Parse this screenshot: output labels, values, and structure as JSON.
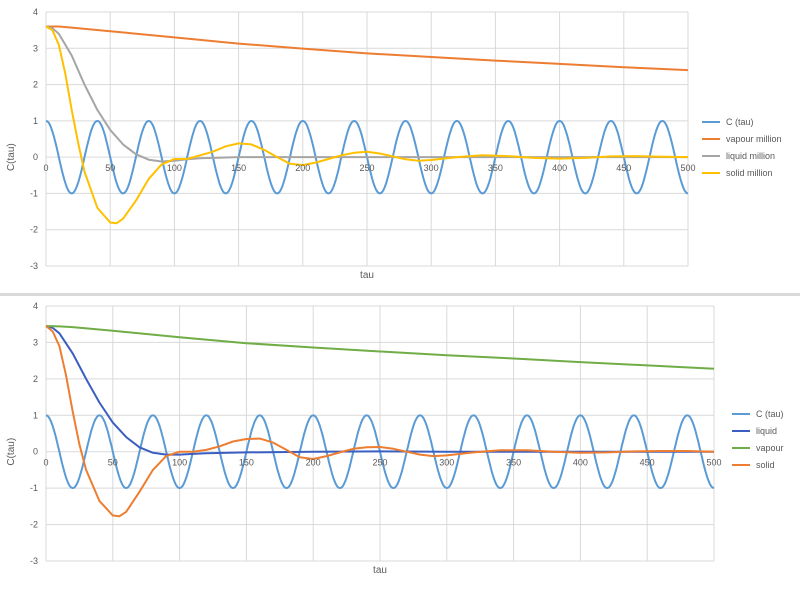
{
  "chart_data": [
    {
      "type": "line",
      "title": "",
      "xlabel": "tau",
      "ylabel": "C(tau)",
      "xlim": [
        0,
        500
      ],
      "ylim": [
        -3,
        4
      ],
      "x_ticks": [
        0,
        50,
        100,
        150,
        200,
        250,
        300,
        350,
        400,
        450,
        500
      ],
      "y_ticks": [
        -3,
        -2,
        -1,
        0,
        1,
        2,
        3,
        4
      ],
      "grid": true,
      "legend_position": "right",
      "series": [
        {
          "name": "C (tau)",
          "color": "#5b9bd5",
          "kind": "cosine",
          "amplitude": 1,
          "period": 40,
          "x": [
            0,
            20,
            40,
            60,
            80,
            100,
            120,
            140,
            160,
            180,
            200,
            220,
            240,
            260,
            280,
            300,
            320,
            340,
            360,
            380,
            400,
            420,
            440,
            460,
            480,
            500
          ],
          "values": [
            1,
            -1,
            1,
            -1,
            1,
            -1,
            1,
            -1,
            1,
            -1,
            1,
            -1,
            1,
            -1,
            1,
            -1,
            1,
            -1,
            1,
            -1,
            1,
            -1,
            1,
            -1,
            1,
            -1
          ]
        },
        {
          "name": "vapour million",
          "color": "#ed7d31",
          "x": [
            0,
            10,
            20,
            50,
            100,
            150,
            200,
            250,
            300,
            350,
            400,
            450,
            500
          ],
          "values": [
            3.6,
            3.6,
            3.57,
            3.47,
            3.3,
            3.13,
            2.99,
            2.86,
            2.76,
            2.66,
            2.57,
            2.48,
            2.4
          ]
        },
        {
          "name": "liquid million",
          "color": "#a5a5a5",
          "x": [
            0,
            5,
            10,
            20,
            30,
            40,
            50,
            60,
            70,
            80,
            90,
            100,
            110,
            120,
            150,
            200,
            250,
            300,
            350,
            400,
            450,
            500
          ],
          "values": [
            3.6,
            3.55,
            3.4,
            2.8,
            2.0,
            1.3,
            0.75,
            0.35,
            0.08,
            -0.07,
            -0.12,
            -0.1,
            -0.06,
            -0.03,
            0.0,
            0.0,
            0.0,
            0.0,
            0.0,
            0.0,
            0.0,
            0.0
          ]
        },
        {
          "name": "solid million",
          "color": "#ffc000",
          "x": [
            0,
            5,
            10,
            15,
            20,
            25,
            30,
            40,
            50,
            55,
            60,
            70,
            80,
            90,
            100,
            110,
            120,
            130,
            140,
            150,
            160,
            170,
            180,
            190,
            200,
            210,
            220,
            230,
            240,
            250,
            260,
            270,
            280,
            290,
            300,
            320,
            340,
            360,
            380,
            400,
            420,
            440,
            460,
            480,
            500
          ],
          "values": [
            3.6,
            3.5,
            3.1,
            2.3,
            1.3,
            0.4,
            -0.4,
            -1.4,
            -1.8,
            -1.82,
            -1.7,
            -1.2,
            -0.6,
            -0.2,
            -0.05,
            -0.05,
            0.05,
            0.15,
            0.3,
            0.38,
            0.35,
            0.2,
            0.0,
            -0.18,
            -0.22,
            -0.15,
            -0.05,
            0.05,
            0.12,
            0.15,
            0.1,
            0.02,
            -0.06,
            -0.1,
            -0.08,
            0.0,
            0.05,
            0.03,
            -0.02,
            -0.04,
            -0.02,
            0.02,
            0.03,
            0.01,
            0.0
          ]
        }
      ]
    },
    {
      "type": "line",
      "title": "",
      "xlabel": "tau",
      "ylabel": "C(tau)",
      "xlim": [
        0,
        500
      ],
      "ylim": [
        -3,
        4
      ],
      "x_ticks": [
        0,
        50,
        100,
        150,
        200,
        250,
        300,
        350,
        400,
        450,
        500
      ],
      "y_ticks": [
        -3,
        -2,
        -1,
        0,
        1,
        2,
        3,
        4
      ],
      "grid": true,
      "legend_position": "right",
      "series": [
        {
          "name": "C (tau)",
          "color": "#5b9bd5",
          "kind": "cosine",
          "amplitude": 1,
          "period": 40,
          "x": [
            0,
            20,
            40,
            60,
            80,
            100,
            120,
            140,
            160,
            180,
            200,
            220,
            240,
            260,
            280,
            300,
            320,
            340,
            360,
            380,
            400,
            420,
            440,
            460,
            480,
            500
          ],
          "values": [
            1,
            -1,
            1,
            -1,
            1,
            -1,
            1,
            -1,
            1,
            -1,
            1,
            -1,
            1,
            -1,
            1,
            -1,
            1,
            -1,
            1,
            -1,
            1,
            -1,
            1,
            -1,
            1,
            -1
          ]
        },
        {
          "name": "liquid",
          "color": "#3b5fc0",
          "x": [
            0,
            5,
            10,
            20,
            30,
            40,
            50,
            60,
            70,
            80,
            90,
            100,
            110,
            120,
            150,
            200,
            250,
            300,
            350,
            400,
            450,
            500
          ],
          "values": [
            3.45,
            3.4,
            3.25,
            2.7,
            2.0,
            1.35,
            0.8,
            0.4,
            0.12,
            -0.03,
            -0.08,
            -0.08,
            -0.06,
            -0.04,
            -0.02,
            0.0,
            0.01,
            0.0,
            0.0,
            0.0,
            0.0,
            0.0
          ]
        },
        {
          "name": "vapour",
          "color": "#70ad47",
          "x": [
            0,
            10,
            20,
            50,
            100,
            150,
            200,
            250,
            300,
            350,
            400,
            450,
            500
          ],
          "values": [
            3.45,
            3.44,
            3.42,
            3.32,
            3.14,
            2.98,
            2.86,
            2.75,
            2.65,
            2.56,
            2.46,
            2.37,
            2.28
          ]
        },
        {
          "name": "solid",
          "color": "#ed7d31",
          "x": [
            0,
            5,
            10,
            15,
            20,
            25,
            30,
            40,
            50,
            55,
            60,
            70,
            80,
            90,
            100,
            110,
            120,
            130,
            140,
            150,
            160,
            170,
            180,
            190,
            200,
            210,
            220,
            230,
            240,
            250,
            260,
            270,
            280,
            290,
            300,
            320,
            340,
            360,
            380,
            400,
            420,
            440,
            460,
            480,
            500
          ],
          "values": [
            3.45,
            3.3,
            2.9,
            2.1,
            1.1,
            0.2,
            -0.5,
            -1.35,
            -1.75,
            -1.77,
            -1.65,
            -1.1,
            -0.5,
            -0.12,
            0.0,
            0.0,
            0.05,
            0.15,
            0.28,
            0.35,
            0.36,
            0.25,
            0.05,
            -0.15,
            -0.2,
            -0.12,
            -0.02,
            0.08,
            0.12,
            0.13,
            0.08,
            0.0,
            -0.08,
            -0.12,
            -0.1,
            -0.02,
            0.04,
            0.04,
            0.0,
            -0.03,
            -0.02,
            0.01,
            0.02,
            0.02,
            0.0
          ]
        }
      ]
    }
  ]
}
